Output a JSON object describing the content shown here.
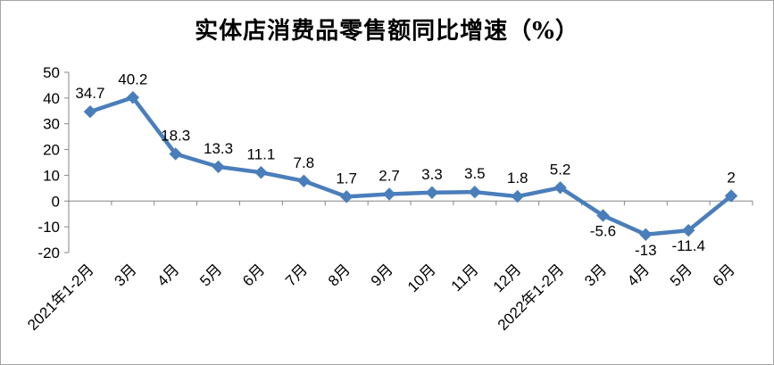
{
  "chart_data": {
    "type": "line",
    "title": "实体店消费品零售额同比增速（%）",
    "categories": [
      "2021年1-2月",
      "3月",
      "4月",
      "5月",
      "6月",
      "7月",
      "8月",
      "9月",
      "10月",
      "11月",
      "12月",
      "2022年1-2月",
      "3月",
      "4月",
      "5月",
      "6月"
    ],
    "series": [
      {
        "values": [
          34.7,
          40.2,
          18.3,
          13.3,
          11.1,
          7.8,
          1.7,
          2.7,
          3.3,
          3.5,
          1.8,
          5.2,
          -5.6,
          -13,
          -11.4,
          2
        ],
        "labels": [
          "34.7",
          "40.2",
          "18.3",
          "13.3",
          "11.1",
          "7.8",
          "1.7",
          "2.7",
          "3.3",
          "3.5",
          "1.8",
          "5.2",
          "-5.6",
          "-13",
          "-11.4",
          "2"
        ],
        "color": "#4a7ebb"
      }
    ],
    "ylim": [
      -20,
      50
    ],
    "yticks": [
      "-20",
      "-10",
      "0",
      "10",
      "20",
      "30",
      "40",
      "50"
    ],
    "grid": false,
    "legend": "none"
  }
}
